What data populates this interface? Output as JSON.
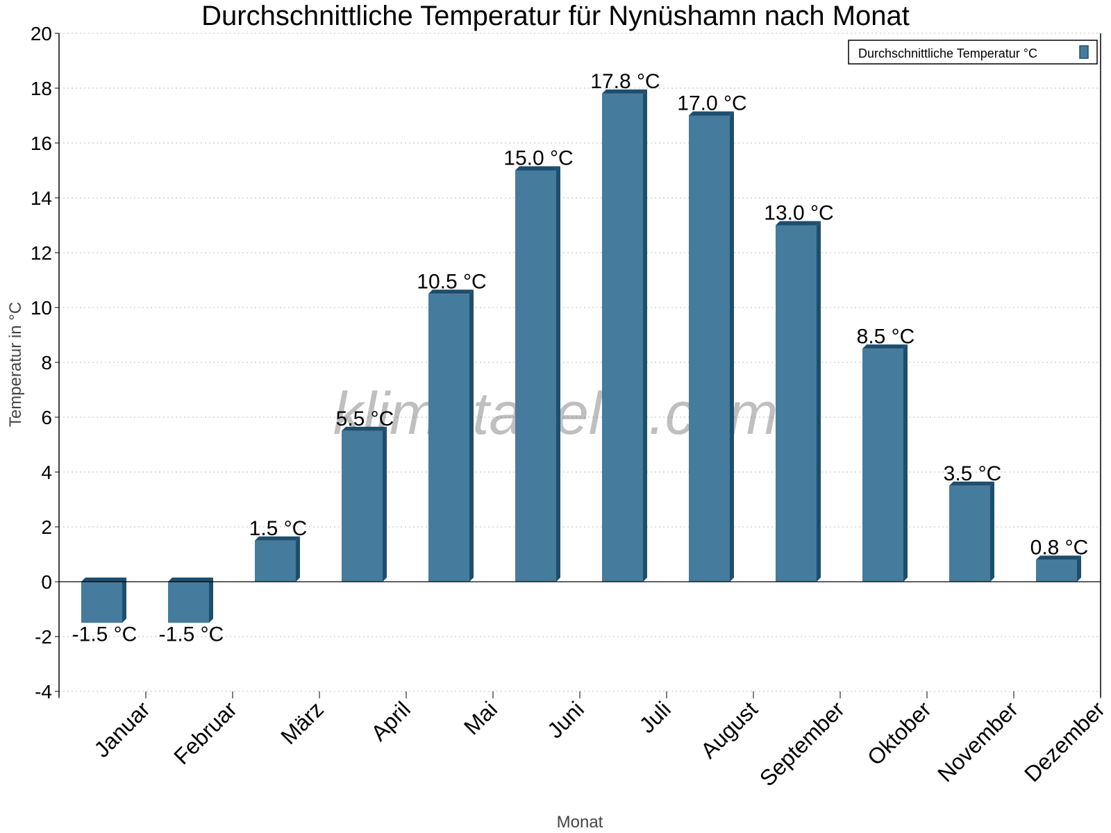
{
  "chart_data": {
    "type": "bar",
    "title": "Durchschnittliche Temperatur für Nynüshamn nach Monat",
    "xlabel": "Monat",
    "ylabel": "Temperatur in °C",
    "categories": [
      "Januar",
      "Februar",
      "März",
      "April",
      "Mai",
      "Juni",
      "Juli",
      "August",
      "September",
      "Oktober",
      "November",
      "Dezember"
    ],
    "series": [
      {
        "name": "Durchschnittliche Temperatur °C",
        "values": [
          -1.5,
          -1.5,
          1.5,
          5.5,
          10.5,
          15.0,
          17.8,
          17.0,
          13.0,
          8.5,
          3.5,
          0.8
        ],
        "labels": [
          "-1.5 °C",
          "-1.5 °C",
          "1.5 °C",
          "5.5 °C",
          "10.5 °C",
          "15.0 °C",
          "17.8 °C",
          "17.0 °C",
          "13.0 °C",
          "8.5 °C",
          "3.5 °C",
          "0.8 °C"
        ]
      }
    ],
    "ylim": [
      -4,
      20
    ],
    "yticks": [
      -4,
      -2,
      0,
      2,
      4,
      6,
      8,
      10,
      12,
      14,
      16,
      18,
      20
    ],
    "grid": true,
    "legend": "top-right",
    "colors": {
      "bar": "#457b9d",
      "bar_side": "#1d4e6e"
    }
  },
  "watermark": "klimatabelle.com"
}
